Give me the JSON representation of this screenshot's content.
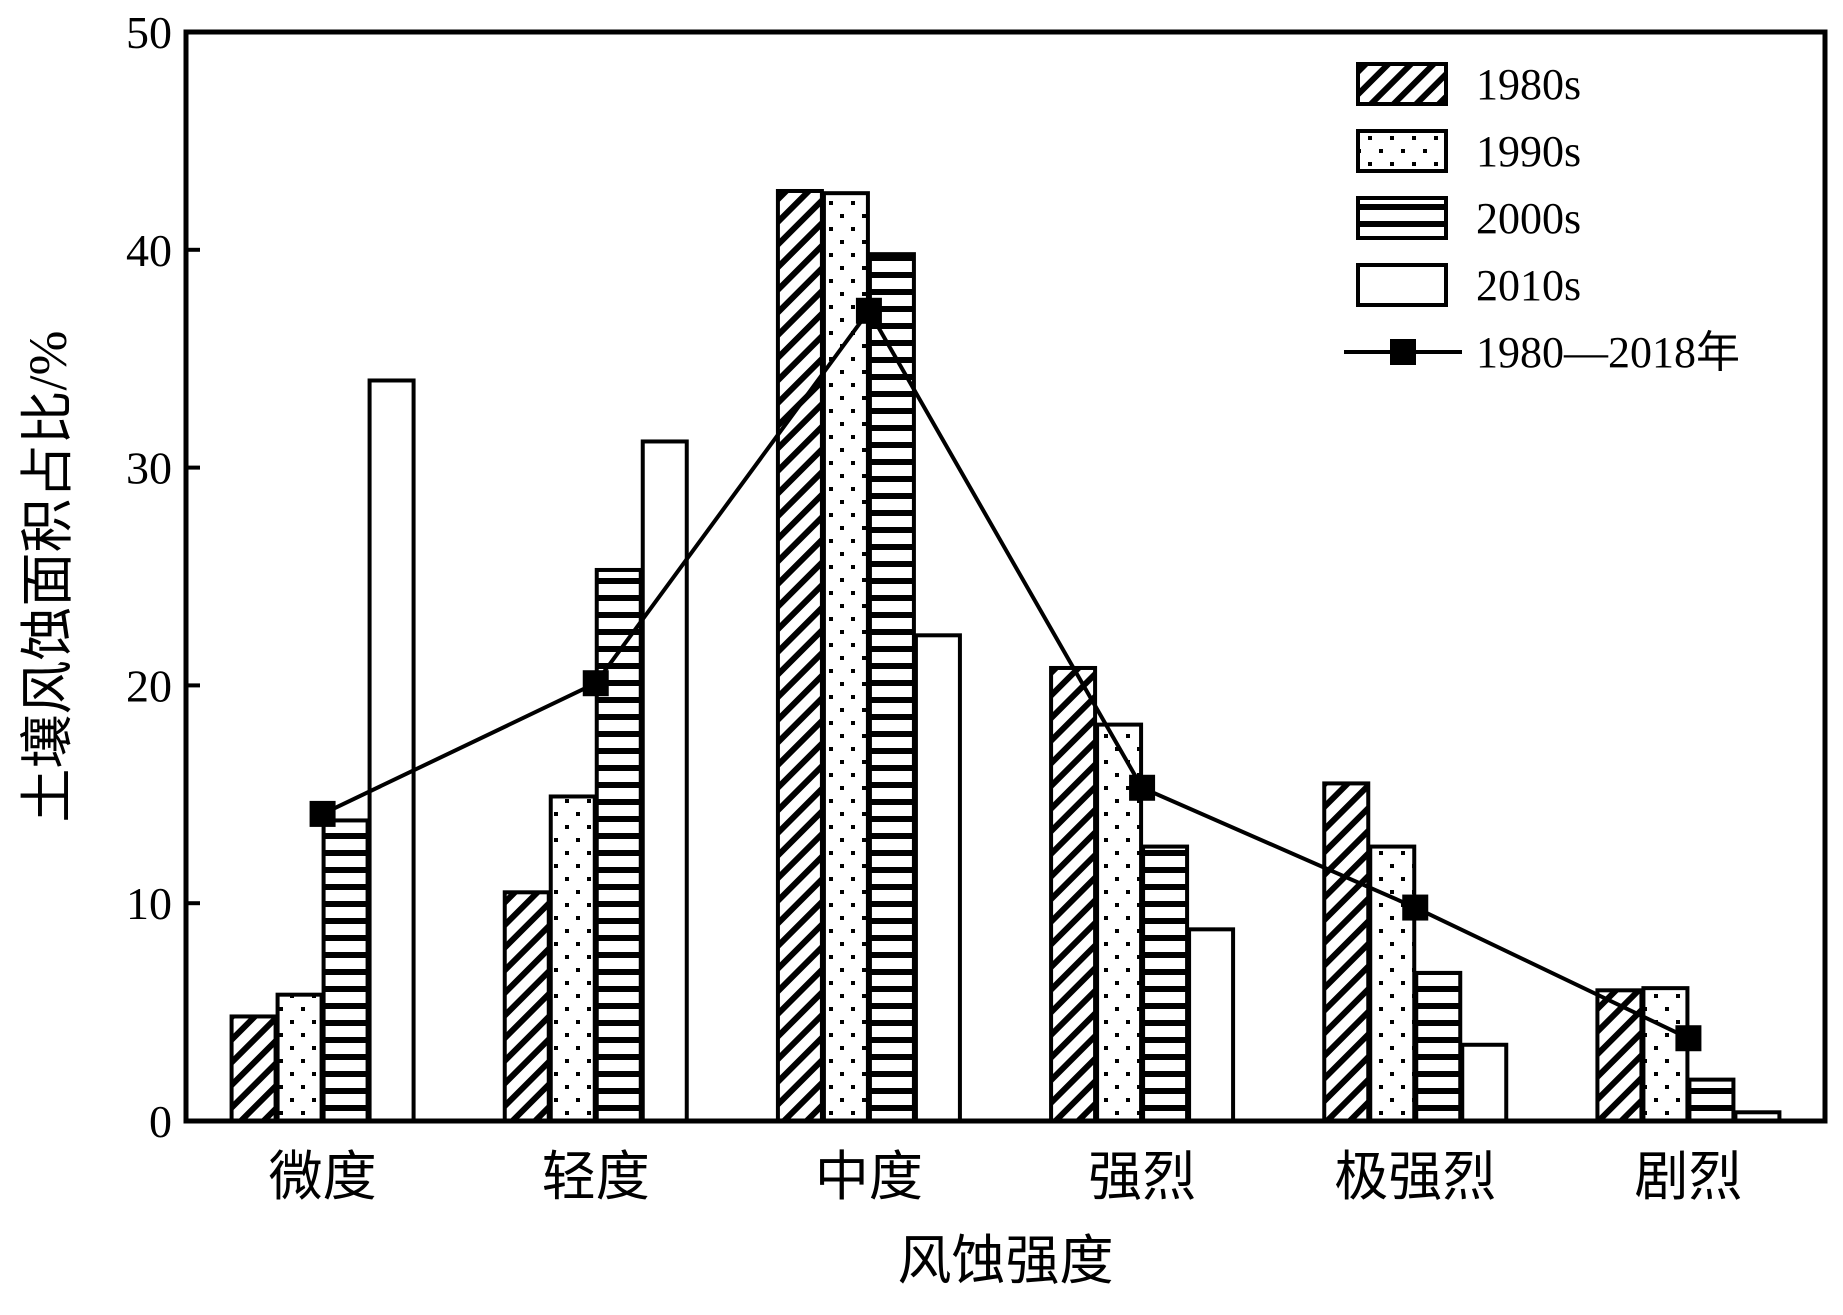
{
  "chart_data": {
    "type": "bar",
    "title": "",
    "xlabel": "风蚀强度",
    "ylabel": "土壤风蚀面积占比/%",
    "ylim": [
      0,
      50
    ],
    "yticks": [
      0,
      10,
      20,
      30,
      40,
      50
    ],
    "grid": false,
    "legend_position": "top-right",
    "categories": [
      "微度",
      "轻度",
      "中度",
      "强烈",
      "极强烈",
      "剧烈"
    ],
    "series": [
      {
        "name": "1980s",
        "kind": "bar",
        "pattern": "diagonal-hatch",
        "values": [
          4.8,
          10.5,
          42.7,
          20.8,
          15.5,
          6.0
        ]
      },
      {
        "name": "1990s",
        "kind": "bar",
        "pattern": "dots",
        "values": [
          5.8,
          14.9,
          42.6,
          18.2,
          12.6,
          6.1
        ]
      },
      {
        "name": "2000s",
        "kind": "bar",
        "pattern": "horizontal-lines",
        "values": [
          13.8,
          25.3,
          39.8,
          12.6,
          6.8,
          1.9
        ]
      },
      {
        "name": "2010s",
        "kind": "bar",
        "pattern": "none",
        "values": [
          34.0,
          31.2,
          22.3,
          8.8,
          3.5,
          0.4
        ]
      },
      {
        "name": "1980—2018年",
        "kind": "line",
        "marker": "square",
        "values": [
          14.1,
          20.1,
          37.2,
          15.3,
          9.8,
          3.8
        ]
      }
    ],
    "colors": {
      "stroke": "#000000",
      "fill": "#ffffff"
    }
  }
}
